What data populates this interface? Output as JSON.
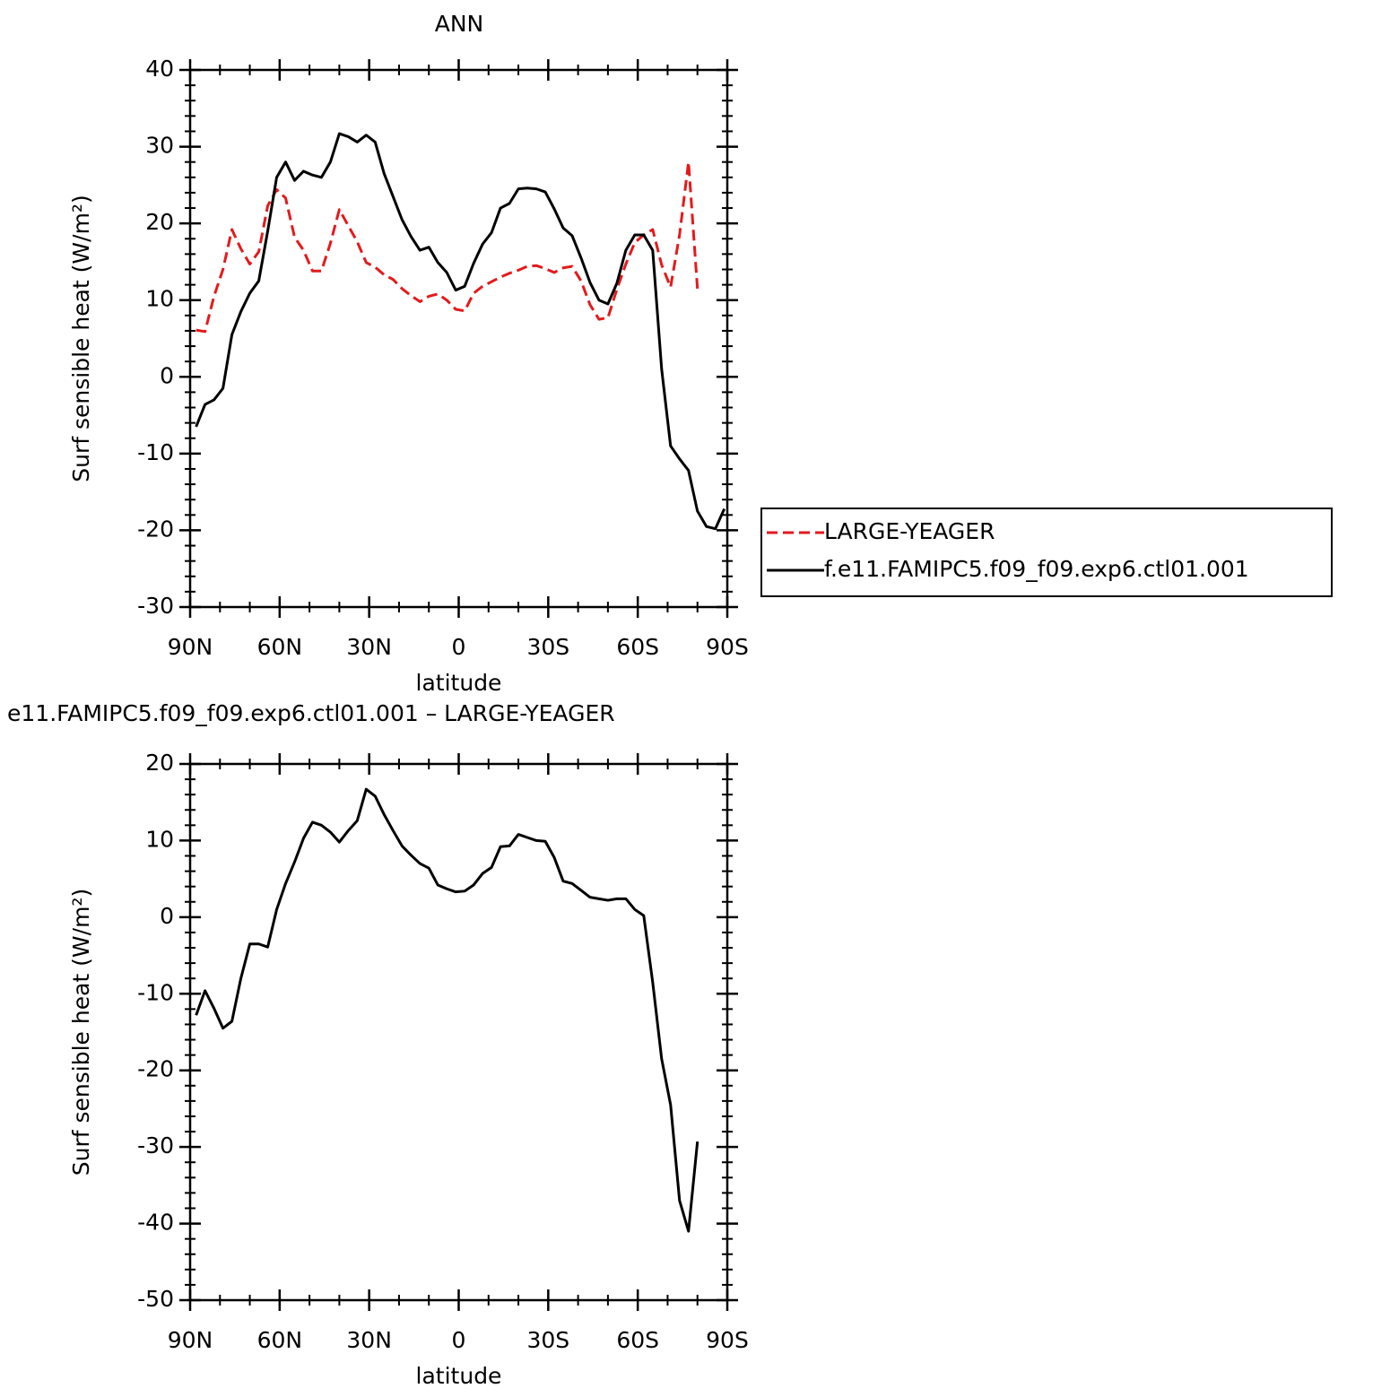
{
  "chart_data": [
    {
      "type": "line",
      "title": "ANN",
      "xlabel": "latitude",
      "ylabel": "Surf sensible heat (W/m²)",
      "x": [
        88,
        85,
        82,
        79,
        76,
        73,
        70,
        67,
        64,
        61,
        58,
        55,
        52,
        49,
        46,
        43,
        40,
        37,
        34,
        31,
        28,
        25,
        22,
        19,
        16,
        13,
        10,
        7,
        4,
        1,
        -2,
        -5,
        -8,
        -11,
        -14,
        -17,
        -20,
        -23,
        -26,
        -29,
        -32,
        -35,
        -38,
        -41,
        -44,
        -47,
        -50,
        -53,
        -56,
        -59,
        -62,
        -65,
        -68,
        -71,
        -74,
        -77,
        -80,
        -83,
        -86,
        -89
      ],
      "series": [
        {
          "name": "LARGE-YEAGER",
          "color": "#e41a1c",
          "linestyle": "dashed",
          "values": [
            6.1,
            5.9,
            10.5,
            14,
            19.2,
            16.7,
            14.7,
            16.3,
            22.3,
            24.4,
            23.3,
            18.2,
            16.5,
            13.8,
            13.8,
            17.4,
            21.8,
            19.7,
            17.6,
            14.9,
            14.3,
            13.3,
            12.7,
            11.5,
            10.6,
            9.8,
            10.5,
            10.8,
            10,
            8.8,
            8.6,
            10.9,
            11.8,
            12.4,
            13,
            13.5,
            13.9,
            14.4,
            14.5,
            14.1,
            13.6,
            14.2,
            14.4,
            12.5,
            9.4,
            7.5,
            7.7,
            11.4,
            14.7,
            17.5,
            18.5,
            19.2,
            14.6,
            11.7,
            18.5,
            28,
            11.5,
            null,
            null,
            null
          ]
        },
        {
          "name": "f.e11.FAMIPC5.f09_f09.exp6.ctl01.001",
          "color": "#000000",
          "linestyle": "solid",
          "values": [
            -6.5,
            -3.6,
            -3,
            -1.5,
            5.5,
            8.5,
            10.9,
            12.5,
            19,
            26,
            28,
            25.6,
            26.8,
            26.3,
            26,
            28,
            31.7,
            31.3,
            30.6,
            31.5,
            30.6,
            26.5,
            23.5,
            20.5,
            18.3,
            16.5,
            16.9,
            14.9,
            13.6,
            11.3,
            11.8,
            14.8,
            17.3,
            18.8,
            22,
            22.6,
            24.5,
            24.6,
            24.5,
            24.1,
            21.9,
            19.4,
            18.4,
            15.5,
            12.3,
            10,
            9.5,
            12.2,
            16.5,
            18.5,
            18.5,
            16.5,
            1,
            -9,
            -10.7,
            -12.2,
            -17.5,
            -19.5,
            -19.8,
            -17.2
          ]
        }
      ],
      "xlim": [
        90,
        -90
      ],
      "ylim": [
        -30,
        40
      ],
      "xticks": [
        {
          "value": 90,
          "label": "90N"
        },
        {
          "value": 60,
          "label": "60N"
        },
        {
          "value": 30,
          "label": "30N"
        },
        0,
        {
          "value": -30,
          "label": "30S"
        },
        {
          "value": -60,
          "label": "60S"
        },
        {
          "value": -90,
          "label": "90S"
        }
      ],
      "yticks": [
        -30,
        -20,
        -10,
        0,
        10,
        20,
        30,
        40
      ],
      "legend": "right"
    },
    {
      "type": "line",
      "title": "e11.FAMIPC5.f09_f09.exp6.ctl01.001 – LARGE-YEAGER",
      "xlabel": "latitude",
      "ylabel": "Surf sensible heat (W/m²)",
      "x": [
        88,
        85,
        82,
        79,
        76,
        73,
        70,
        67,
        64,
        61,
        58,
        55,
        52,
        49,
        46,
        43,
        40,
        37,
        34,
        31,
        28,
        25,
        22,
        19,
        16,
        13,
        10,
        7,
        4,
        1,
        -2,
        -5,
        -8,
        -11,
        -14,
        -17,
        -20,
        -23,
        -26,
        -29,
        -32,
        -35,
        -38,
        -41,
        -44,
        -47,
        -50,
        -53,
        -56,
        -59,
        -62,
        -65,
        -68,
        -71,
        -74,
        -77,
        -80,
        -83,
        -86,
        -89
      ],
      "series": [
        {
          "color": "#000000",
          "linestyle": "solid",
          "values": [
            -12.8,
            -9.6,
            -11.9,
            -14.5,
            -13.6,
            -8,
            -3.5,
            -3.5,
            -3.9,
            1,
            4.4,
            7.2,
            10.3,
            12.4,
            12,
            11.1,
            9.8,
            11.3,
            12.6,
            16.7,
            15.8,
            13.4,
            11.3,
            9.3,
            8.1,
            7,
            6.4,
            4.2,
            3.7,
            3.3,
            3.4,
            4.2,
            5.7,
            6.5,
            9.2,
            9.3,
            10.8,
            10.4,
            10,
            9.9,
            7.8,
            4.7,
            4.4,
            3.5,
            2.6,
            2.4,
            2.2,
            2.4,
            2.4,
            1,
            0.2,
            -8.5,
            -18.5,
            -24.5,
            -37,
            -41,
            -29.3,
            null,
            null,
            null
          ]
        }
      ],
      "xlim": [
        90,
        -90
      ],
      "ylim": [
        -50,
        20
      ],
      "xticks": [
        {
          "value": 90,
          "label": "90N"
        },
        {
          "value": 60,
          "label": "60N"
        },
        {
          "value": 30,
          "label": "30N"
        },
        0,
        {
          "value": -30,
          "label": "30S"
        },
        {
          "value": -60,
          "label": "60S"
        },
        {
          "value": -90,
          "label": "90S"
        }
      ],
      "yticks": [
        -50,
        -40,
        -30,
        -20,
        -10,
        0,
        10,
        20
      ]
    }
  ]
}
